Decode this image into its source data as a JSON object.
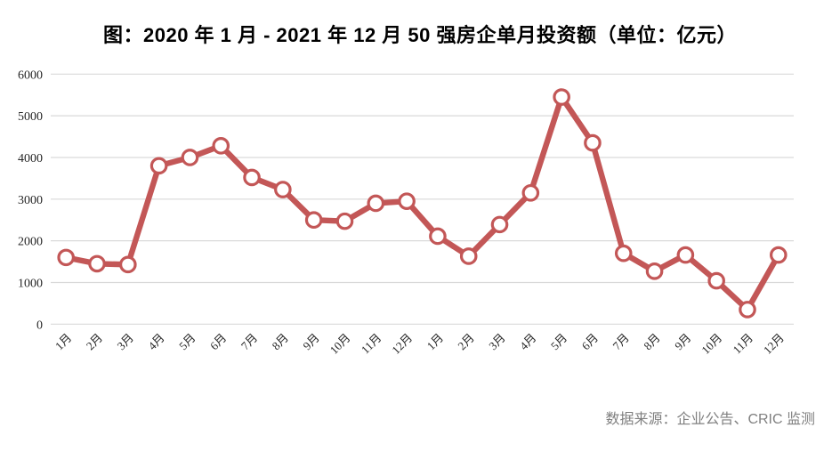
{
  "title": "图：2020 年 1 月  - 2021 年 12 月 50 强房企单月投资额（单位：亿元）",
  "source": "数据来源：企业公告、CRIC 监测",
  "colors": {
    "line": "#C35757",
    "marker_fill": "#FFFFFF",
    "grid": "#D9D9D9",
    "axis_text": "#262626",
    "title_text": "#000000",
    "source_text": "#808080",
    "background": "#FFFFFF"
  },
  "chart_data": {
    "type": "line",
    "title": "2020年1月-2021年12月50强房企单月投资额（单位：亿元）",
    "x": [
      "1月",
      "2月",
      "3月",
      "4月",
      "5月",
      "6月",
      "7月",
      "8月",
      "9月",
      "10月",
      "11月",
      "12月",
      "1月",
      "2月",
      "3月",
      "4月",
      "5月",
      "6月",
      "7月",
      "8月",
      "9月",
      "10月",
      "11月",
      "12月"
    ],
    "series": [
      {
        "name": "单月投资额",
        "values": [
          1600,
          1450,
          1430,
          3800,
          4000,
          4280,
          3520,
          3230,
          2500,
          2470,
          2900,
          2950,
          2110,
          1630,
          2390,
          3150,
          5450,
          4350,
          1700,
          1270,
          1660,
          1040,
          350,
          1660
        ]
      }
    ],
    "ylim": [
      0,
      6000
    ],
    "yticks": [
      0,
      1000,
      2000,
      3000,
      4000,
      5000,
      6000
    ],
    "grid": true,
    "legend": "none",
    "marker": "open-circle"
  }
}
